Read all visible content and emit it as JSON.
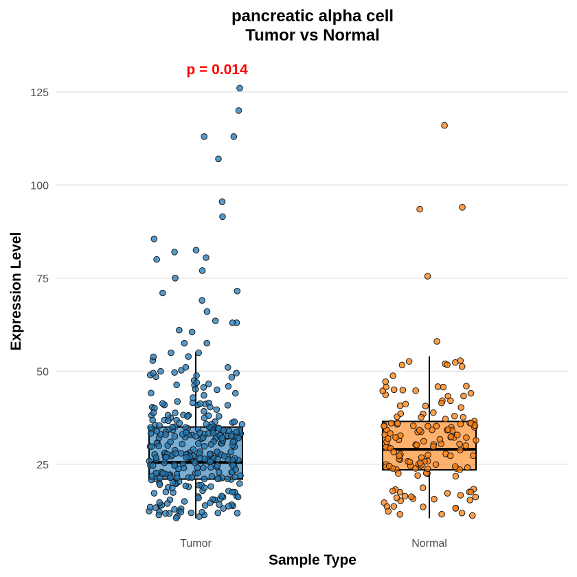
{
  "chart_data": {
    "type": "box",
    "title": "pancreatic alpha cell",
    "subtitle": "Tumor vs Normal",
    "xlabel": "Sample Type",
    "ylabel": "Expression Level",
    "ylim": [
      8,
      134
    ],
    "yticks": [
      25,
      50,
      75,
      100,
      125
    ],
    "grid": true,
    "annotation": {
      "text": "p = 0.014",
      "color": "#ff0000"
    },
    "categories": [
      "Tumor",
      "Normal"
    ],
    "colors": {
      "Tumor": "#1f77b4",
      "Normal": "#ff7f0e"
    },
    "boxes": [
      {
        "name": "Tumor",
        "q1": 21,
        "median": 25.5,
        "q3": 35,
        "whisker_low": 10.5,
        "whisker_high": 55
      },
      {
        "name": "Normal",
        "q1": 23.5,
        "median": 29,
        "q3": 36.5,
        "whisker_low": 10.5,
        "whisker_high": 54
      }
    ],
    "outliers": {
      "Tumor": [
        126,
        120,
        113,
        113,
        107,
        95.5,
        91.5,
        85.5,
        82.5,
        82,
        80.5,
        80,
        77,
        75,
        71.5,
        71,
        69,
        66,
        63.5,
        63,
        63,
        61,
        60.5,
        57.5,
        57.5
      ],
      "Normal": [
        116,
        94,
        93.5,
        75.5,
        58
      ]
    }
  }
}
